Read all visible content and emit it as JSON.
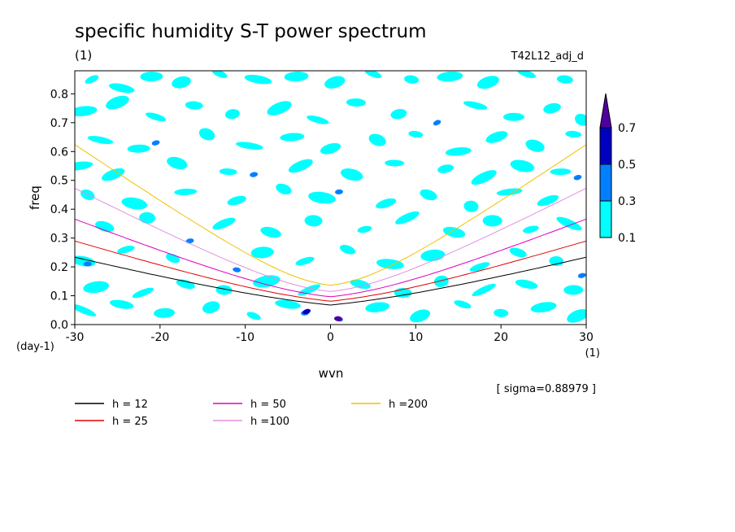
{
  "chart_data": {
    "type": "contour",
    "title": "specific humidity S-T power spectrum",
    "subtitle_left": "(1)",
    "subtitle_right": "T42L12_adj_d",
    "xlabel": "wvn",
    "ylabel": "freq",
    "x_unit": "(1)",
    "y_unit": "(day-1)",
    "xlim": [
      -30,
      30
    ],
    "ylim": [
      0,
      0.88
    ],
    "x_ticks": [
      -30,
      -20,
      -10,
      0,
      10,
      20,
      30
    ],
    "y_ticks": [
      0.0,
      0.1,
      0.2,
      0.3,
      0.4,
      0.5,
      0.6,
      0.7,
      0.8
    ],
    "y_tick_labels": [
      "0.0",
      "0.1",
      "0.2",
      "0.3",
      "0.4",
      "0.5",
      "0.6",
      "0.7",
      "0.8"
    ],
    "sigma_note": "[ sigma=0.88979 ]",
    "colorbar": {
      "levels": [
        0.1,
        0.3,
        0.5,
        0.7
      ],
      "labels": [
        "0.1",
        "0.3",
        "0.5",
        "0.7"
      ],
      "colors": [
        "#00ffff",
        "#0080ff",
        "#0000c0",
        "#5000a0"
      ]
    },
    "series": [
      {
        "name": "h = 12",
        "h": 12,
        "color": "#000000"
      },
      {
        "name": "h = 25",
        "h": 25,
        "color": "#e00000"
      },
      {
        "name": "h = 50",
        "h": 50,
        "color": "#e000c0"
      },
      {
        "name": "h =100",
        "h": 100,
        "color": "#e090e0"
      },
      {
        "name": "h =200",
        "h": 200,
        "color": "#f0c000"
      }
    ],
    "patches": [
      [
        -28.0,
        0.85,
        0.1
      ],
      [
        -24.5,
        0.82,
        0.1
      ],
      [
        -21.0,
        0.86,
        0.1
      ],
      [
        -17.5,
        0.84,
        0.1
      ],
      [
        -13.0,
        0.87,
        0.1
      ],
      [
        -8.5,
        0.85,
        0.1
      ],
      [
        -4.0,
        0.86,
        0.1
      ],
      [
        0.5,
        0.84,
        0.1
      ],
      [
        5.0,
        0.87,
        0.1
      ],
      [
        9.5,
        0.85,
        0.1
      ],
      [
        14.0,
        0.86,
        0.1
      ],
      [
        18.5,
        0.84,
        0.1
      ],
      [
        23.0,
        0.87,
        0.1
      ],
      [
        27.5,
        0.85,
        0.1
      ],
      [
        -29.0,
        0.74,
        0.1
      ],
      [
        -25.0,
        0.77,
        0.1
      ],
      [
        -20.5,
        0.72,
        0.1
      ],
      [
        -16.0,
        0.76,
        0.1
      ],
      [
        -11.5,
        0.73,
        0.1
      ],
      [
        -6.0,
        0.75,
        0.1
      ],
      [
        -1.5,
        0.71,
        0.1
      ],
      [
        3.0,
        0.77,
        0.1
      ],
      [
        8.0,
        0.73,
        0.1
      ],
      [
        12.5,
        0.7,
        0.3
      ],
      [
        17.0,
        0.76,
        0.1
      ],
      [
        21.5,
        0.72,
        0.1
      ],
      [
        26.0,
        0.75,
        0.1
      ],
      [
        29.5,
        0.71,
        0.1
      ],
      [
        -27.0,
        0.64,
        0.1
      ],
      [
        -22.5,
        0.61,
        0.1
      ],
      [
        -20.5,
        0.63,
        0.3
      ],
      [
        -14.5,
        0.66,
        0.1
      ],
      [
        -9.5,
        0.62,
        0.1
      ],
      [
        -4.5,
        0.65,
        0.1
      ],
      [
        0.0,
        0.61,
        0.1
      ],
      [
        5.5,
        0.64,
        0.1
      ],
      [
        10.0,
        0.66,
        0.1
      ],
      [
        15.0,
        0.6,
        0.1
      ],
      [
        19.5,
        0.65,
        0.1
      ],
      [
        24.0,
        0.62,
        0.1
      ],
      [
        28.5,
        0.66,
        0.1
      ],
      [
        -29.5,
        0.55,
        0.1
      ],
      [
        -25.5,
        0.52,
        0.1
      ],
      [
        -18.0,
        0.56,
        0.1
      ],
      [
        -12.0,
        0.53,
        0.1
      ],
      [
        -9.0,
        0.52,
        0.3
      ],
      [
        -3.5,
        0.55,
        0.1
      ],
      [
        2.5,
        0.52,
        0.1
      ],
      [
        7.5,
        0.56,
        0.1
      ],
      [
        13.5,
        0.54,
        0.1
      ],
      [
        18.0,
        0.51,
        0.1
      ],
      [
        22.5,
        0.55,
        0.1
      ],
      [
        27.0,
        0.53,
        0.1
      ],
      [
        29.0,
        0.51,
        0.3
      ],
      [
        -28.5,
        0.45,
        0.1
      ],
      [
        -23.0,
        0.42,
        0.1
      ],
      [
        -17.0,
        0.46,
        0.1
      ],
      [
        -11.0,
        0.43,
        0.1
      ],
      [
        -5.5,
        0.47,
        0.1
      ],
      [
        -1.0,
        0.44,
        0.1
      ],
      [
        1.0,
        0.46,
        0.3
      ],
      [
        6.5,
        0.42,
        0.1
      ],
      [
        11.5,
        0.45,
        0.1
      ],
      [
        16.5,
        0.41,
        0.1
      ],
      [
        21.0,
        0.46,
        0.1
      ],
      [
        25.5,
        0.43,
        0.1
      ],
      [
        -26.5,
        0.34,
        0.1
      ],
      [
        -21.5,
        0.37,
        0.1
      ],
      [
        -16.5,
        0.29,
        0.3
      ],
      [
        -12.5,
        0.35,
        0.1
      ],
      [
        -7.0,
        0.32,
        0.1
      ],
      [
        -2.0,
        0.36,
        0.1
      ],
      [
        4.0,
        0.33,
        0.1
      ],
      [
        9.0,
        0.37,
        0.1
      ],
      [
        14.5,
        0.32,
        0.1
      ],
      [
        19.0,
        0.36,
        0.1
      ],
      [
        23.5,
        0.33,
        0.1
      ],
      [
        28.0,
        0.35,
        0.1
      ],
      [
        -29.0,
        0.22,
        0.1
      ],
      [
        -28.5,
        0.21,
        0.3
      ],
      [
        -24.0,
        0.26,
        0.1
      ],
      [
        -18.5,
        0.23,
        0.1
      ],
      [
        -11.0,
        0.19,
        0.3
      ],
      [
        -8.0,
        0.25,
        0.1
      ],
      [
        -3.0,
        0.22,
        0.1
      ],
      [
        2.0,
        0.26,
        0.1
      ],
      [
        7.0,
        0.21,
        0.1
      ],
      [
        12.0,
        0.24,
        0.1
      ],
      [
        17.5,
        0.2,
        0.1
      ],
      [
        22.0,
        0.25,
        0.1
      ],
      [
        26.5,
        0.22,
        0.1
      ],
      [
        -27.5,
        0.13,
        0.1
      ],
      [
        -22.0,
        0.11,
        0.1
      ],
      [
        -17.0,
        0.14,
        0.1
      ],
      [
        -12.5,
        0.12,
        0.1
      ],
      [
        -7.5,
        0.15,
        0.1
      ],
      [
        -2.5,
        0.12,
        0.1
      ],
      [
        3.5,
        0.14,
        0.1
      ],
      [
        8.5,
        0.11,
        0.1
      ],
      [
        13.0,
        0.15,
        0.1
      ],
      [
        18.0,
        0.12,
        0.1
      ],
      [
        23.0,
        0.14,
        0.1
      ],
      [
        28.5,
        0.12,
        0.1
      ],
      [
        29.5,
        0.17,
        0.3
      ],
      [
        -29.0,
        0.05,
        0.1
      ],
      [
        -24.5,
        0.07,
        0.1
      ],
      [
        -19.5,
        0.04,
        0.1
      ],
      [
        -14.0,
        0.06,
        0.1
      ],
      [
        -9.0,
        0.03,
        0.1
      ],
      [
        -5.0,
        0.07,
        0.1
      ],
      [
        -3.0,
        0.04,
        0.3
      ],
      [
        -2.8,
        0.045,
        0.5
      ],
      [
        1.0,
        0.02,
        0.3
      ],
      [
        0.9,
        0.02,
        0.7
      ],
      [
        5.5,
        0.06,
        0.1
      ],
      [
        10.5,
        0.03,
        0.1
      ],
      [
        15.5,
        0.07,
        0.1
      ],
      [
        20.0,
        0.04,
        0.1
      ],
      [
        25.0,
        0.06,
        0.1
      ],
      [
        29.0,
        0.03,
        0.1
      ]
    ]
  }
}
